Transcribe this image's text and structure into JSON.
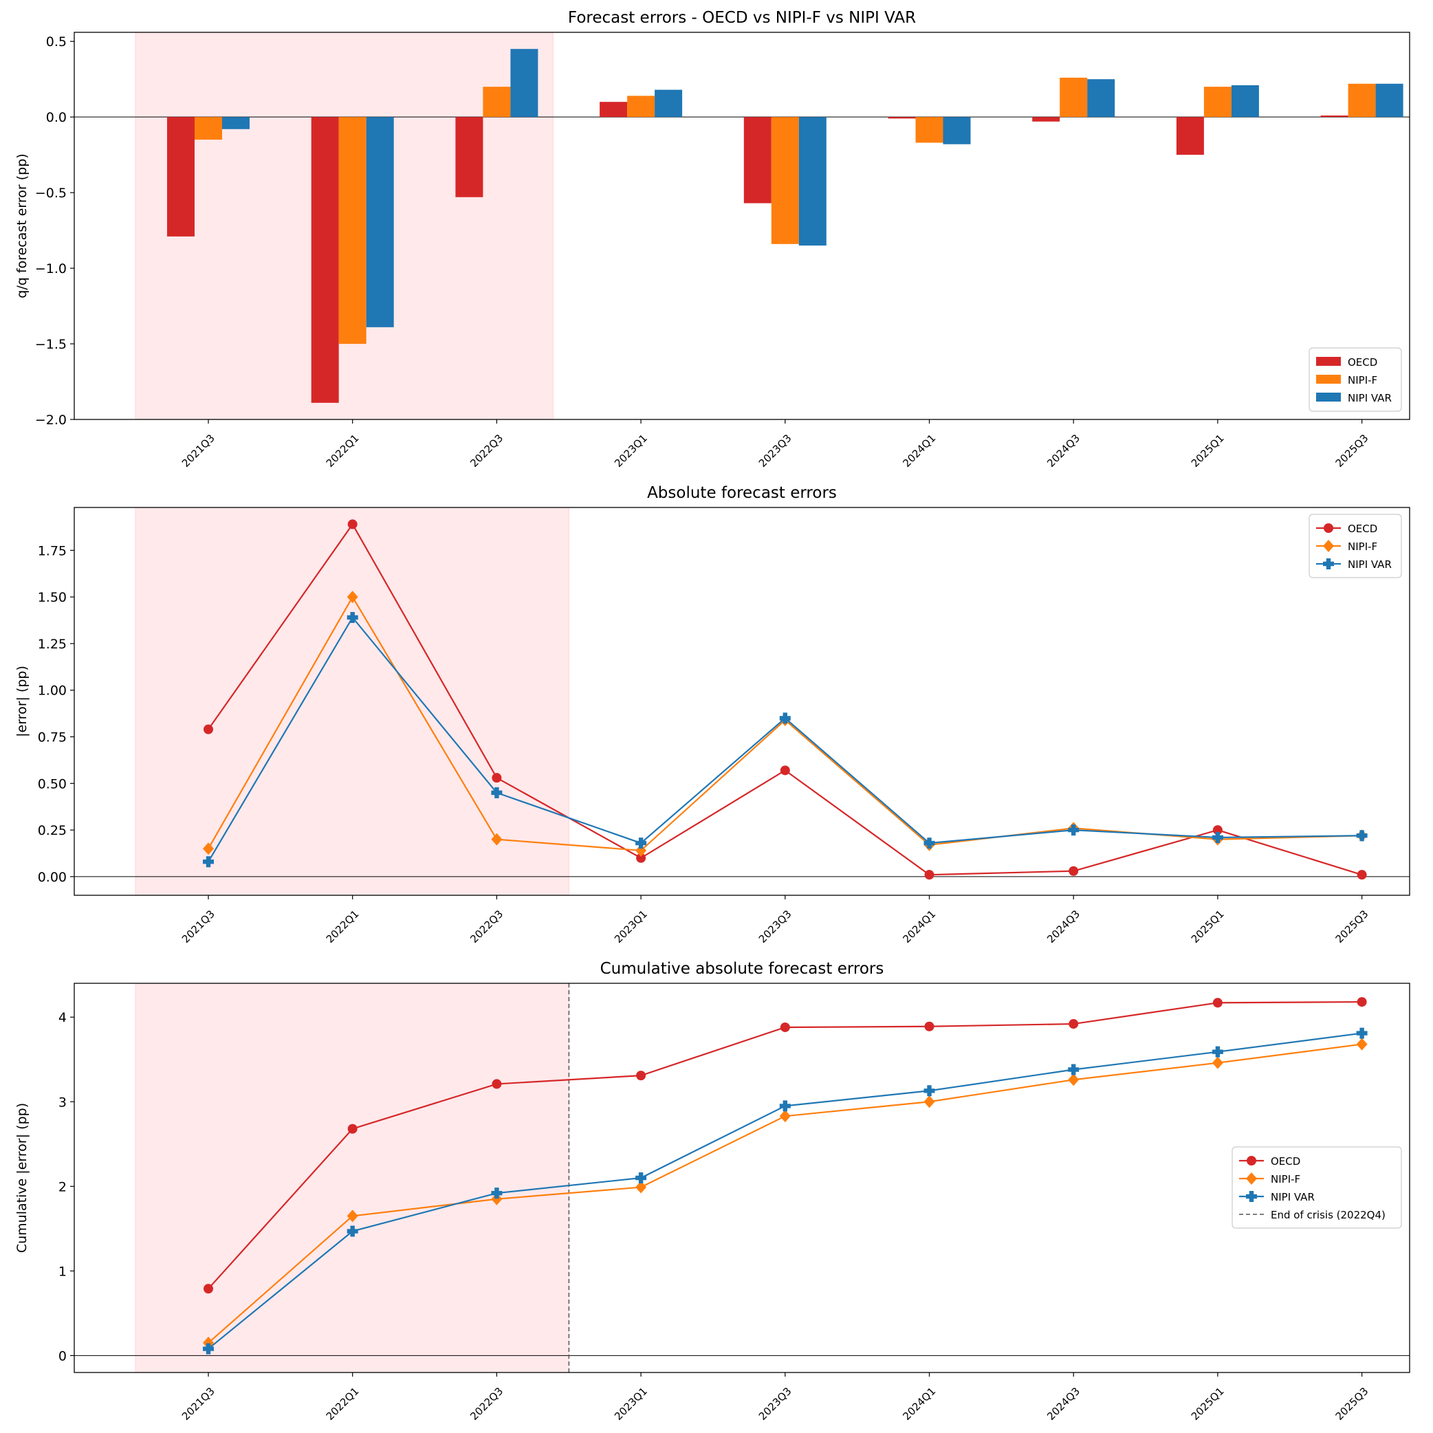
{
  "colors": {
    "oecd": "#d62728",
    "nipif": "#ff7f0e",
    "nipivar": "#1f77b4",
    "crisis": "#ffc0c6",
    "crisis_line": "#555555"
  },
  "chart_data": [
    {
      "type": "bar",
      "title": "Forecast errors - OECD vs NIPI-F vs NIPI VAR",
      "xlabel": "",
      "ylabel": "q/q forecast error (pp)",
      "ylim": [
        -2.0,
        0.56
      ],
      "yticks": [
        -2.0,
        -1.5,
        -1.0,
        -0.5,
        0.0,
        0.5
      ],
      "ytick_labels": [
        "−2.0",
        "−1.5",
        "−1.0",
        "−0.5",
        "0.0",
        "0.5"
      ],
      "categories": [
        "2021Q3",
        "2022Q1",
        "2022Q3",
        "2023Q1",
        "2023Q3",
        "2024Q1",
        "2024Q3",
        "2025Q1",
        "2025Q3"
      ],
      "crisis_shading": [
        "2021Q3",
        "2022Q3"
      ],
      "legend_position": "lower-right",
      "series": [
        {
          "name": "OECD",
          "values": [
            -0.79,
            -1.89,
            -0.53,
            0.1,
            -0.57,
            -0.01,
            -0.03,
            -0.25,
            0.01
          ]
        },
        {
          "name": "NIPI-F",
          "values": [
            -0.15,
            -1.5,
            0.2,
            0.14,
            -0.84,
            -0.17,
            0.26,
            0.2,
            0.22
          ]
        },
        {
          "name": "NIPI VAR",
          "values": [
            -0.08,
            -1.39,
            0.45,
            0.18,
            -0.85,
            -0.18,
            0.25,
            0.21,
            0.22
          ]
        }
      ]
    },
    {
      "type": "line",
      "title": "Absolute forecast errors",
      "xlabel": "",
      "ylabel": "|error| (pp)",
      "ylim": [
        -0.1,
        1.98
      ],
      "yticks": [
        0.0,
        0.25,
        0.5,
        0.75,
        1.0,
        1.25,
        1.5,
        1.75
      ],
      "ytick_labels": [
        "0.00",
        "0.25",
        "0.50",
        "0.75",
        "1.00",
        "1.25",
        "1.50",
        "1.75"
      ],
      "categories": [
        "2021Q3",
        "2022Q1",
        "2022Q3",
        "2023Q1",
        "2023Q3",
        "2024Q1",
        "2024Q3",
        "2025Q1",
        "2025Q3"
      ],
      "crisis_shading": [
        "2021Q3",
        "2022Q4"
      ],
      "legend_position": "upper-right",
      "series": [
        {
          "name": "OECD",
          "marker": "circle",
          "values": [
            0.79,
            1.89,
            0.53,
            0.1,
            0.57,
            0.01,
            0.03,
            0.25,
            0.01
          ]
        },
        {
          "name": "NIPI-F",
          "marker": "diamond",
          "values": [
            0.15,
            1.5,
            0.2,
            0.14,
            0.84,
            0.17,
            0.26,
            0.2,
            0.22
          ]
        },
        {
          "name": "NIPI VAR",
          "marker": "plus",
          "values": [
            0.08,
            1.39,
            0.45,
            0.18,
            0.85,
            0.18,
            0.25,
            0.21,
            0.22
          ]
        }
      ]
    },
    {
      "type": "line",
      "title": "Cumulative absolute forecast errors",
      "xlabel": "",
      "ylabel": "Cumulative |error| (pp)",
      "ylim": [
        -0.2,
        4.4
      ],
      "yticks": [
        0,
        1,
        2,
        3,
        4
      ],
      "ytick_labels": [
        "0",
        "1",
        "2",
        "3",
        "4"
      ],
      "categories": [
        "2021Q3",
        "2022Q1",
        "2022Q3",
        "2023Q1",
        "2023Q3",
        "2024Q1",
        "2024Q3",
        "2025Q1",
        "2025Q3"
      ],
      "crisis_shading": [
        "2021Q3",
        "2022Q4"
      ],
      "vline": {
        "at": "2022Q4",
        "label": "End of crisis (2022Q4)"
      },
      "legend_position": "center-right",
      "series": [
        {
          "name": "OECD",
          "marker": "circle",
          "values": [
            0.79,
            2.68,
            3.21,
            3.31,
            3.88,
            3.89,
            3.92,
            4.17,
            4.18
          ]
        },
        {
          "name": "NIPI-F",
          "marker": "diamond",
          "values": [
            0.15,
            1.65,
            1.85,
            1.99,
            2.83,
            3.0,
            3.26,
            3.46,
            3.68
          ]
        },
        {
          "name": "NIPI VAR",
          "marker": "plus",
          "values": [
            0.08,
            1.47,
            1.92,
            2.1,
            2.95,
            3.13,
            3.38,
            3.59,
            3.81
          ]
        }
      ]
    }
  ]
}
